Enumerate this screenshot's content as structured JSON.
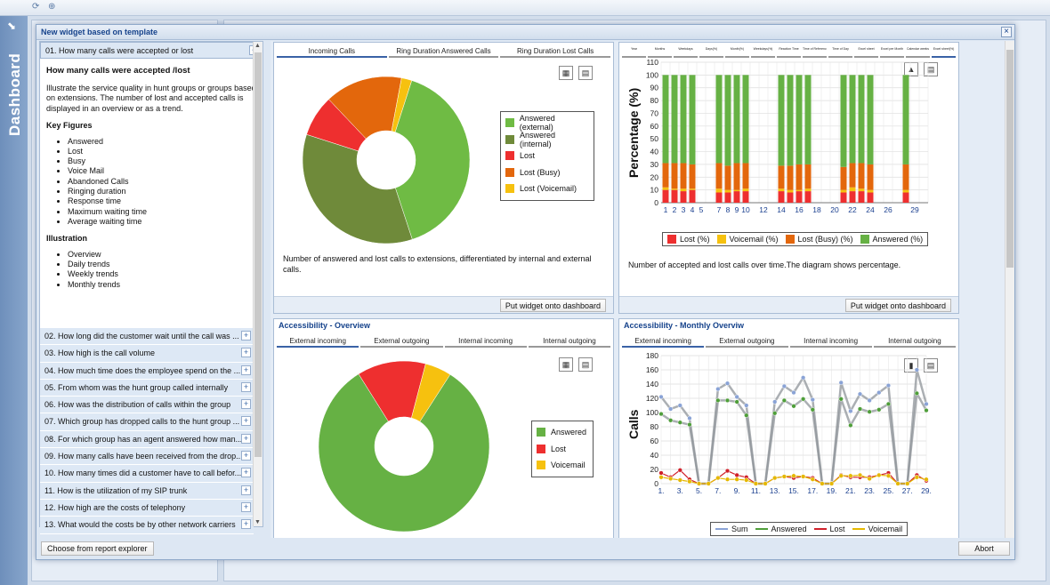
{
  "app": {
    "sidebar_title": "Dashboard"
  },
  "dialog": {
    "title": "New widget based on template"
  },
  "left": {
    "active_item": "01. How many calls were accepted or lost",
    "desc_title": "How many calls were accepted /lost",
    "desc_text": "Illustrate the service quality in hunt groups or groups based on extensions. The number of lost and accepted calls is displayed in an overview or as a trend.",
    "key_figures_title": "Key Figures",
    "key_figures": [
      "Answered",
      "Lost",
      "Busy",
      "Voice Mail",
      "Abandoned Calls",
      "Ringing duration",
      "Response time",
      "Maximum waiting time",
      "Average waiting time"
    ],
    "illustration_title": "Illustration",
    "illustration": [
      "Overview",
      "Daily trends",
      "Weekly trends",
      "Monthly trends"
    ],
    "items": [
      "02. How long did the customer wait until the call was ...",
      "03. How high is the call volume",
      "04. How much time does the employee spend on the ...",
      "05. From whom was the hunt group called internally",
      "06. How was the distribution of calls within the group",
      "07. Which group has dropped calls to the hunt group ...",
      "08. For which group has an agent answered how man...",
      "09. How many calls have been received from the drop...",
      "10. How many times did a customer have to call befor...",
      "11. How is the utilization of my SIP trunk",
      "12. How high are the costs of telephony",
      "13. What would the costs be by other network carriers"
    ]
  },
  "buttons": {
    "report_explorer": "Choose from report explorer",
    "abort": "Abort",
    "put_widget": "Put widget onto dashboard"
  },
  "colors": {
    "ans_ext": "#6fbb44",
    "ans_int": "#6f8a3a",
    "lost": "#ee2f2f",
    "busy": "#e3670c",
    "voicemail": "#f6c10f",
    "answered": "#66b144"
  },
  "w1": {
    "tabs": [
      "Incoming Calls",
      "Ring Duration Answered Calls",
      "Ring Duration Lost Calls"
    ],
    "legend": [
      "Answered (external)",
      "Answered (internal)",
      "Lost",
      "Lost (Busy)",
      "Lost (Voicemail)"
    ],
    "caption": "Number of answered and lost calls to extensions, differentiated by internal and external calls."
  },
  "w2": {
    "tabs": [
      "Year",
      "Months",
      "Weekdays",
      "Days(%)",
      "Month(%)",
      "Weekdays(%)",
      "Reaction Time",
      "Time of Reference",
      "Time of Day",
      "Excel sheet",
      "Excel per Month",
      "Calendar weeks",
      "Excel sheet(%)"
    ],
    "ylabel": "Percentage (%)",
    "legend": [
      "Lost (%)",
      "Voicemail (%)",
      "Lost (Busy) (%)",
      "Answered (%)"
    ],
    "caption": "Number of accepted and lost calls over time.The diagram shows percentage."
  },
  "w3": {
    "title": "Accessibility - Overview",
    "tabs": [
      "External incoming",
      "External outgoing",
      "Internal incoming",
      "Internal outgoing"
    ],
    "legend": [
      "Answered",
      "Lost",
      "Voicemail"
    ]
  },
  "w4": {
    "title": "Accessibility - Monthly Overviw",
    "tabs": [
      "External incoming",
      "External outgoing",
      "Internal incoming",
      "Internal outgoing"
    ],
    "ylabel": "Calls",
    "legend": [
      "Sum",
      "Answered",
      "Lost",
      "Voicemail"
    ]
  },
  "chart_data": [
    {
      "type": "pie",
      "categories": [
        "Answered (external)",
        "Answered (internal)",
        "Lost",
        "Lost (Busy)",
        "Lost (Voicemail)"
      ],
      "values": [
        40,
        35,
        8,
        15,
        2
      ]
    },
    {
      "type": "bar",
      "ylabel": "Percentage (%)",
      "ylim": [
        0,
        110
      ],
      "x": [
        1,
        2,
        3,
        4,
        5,
        6,
        7,
        8,
        9,
        10,
        11,
        12,
        13,
        14,
        15,
        16,
        17,
        18,
        19,
        20,
        21,
        22,
        23,
        24,
        25,
        26,
        27,
        28,
        29,
        30
      ],
      "xticks": [
        "1",
        "2",
        "3",
        "4",
        "5",
        "7",
        "8",
        "9",
        "10",
        "12",
        "14",
        "16",
        "18",
        "20",
        "22",
        "24",
        "26",
        "29"
      ],
      "series": [
        {
          "name": "Lost (%)",
          "values": [
            10,
            10,
            9,
            10,
            0,
            0,
            8,
            8,
            9,
            9,
            0,
            0,
            0,
            9,
            8,
            9,
            9,
            0,
            0,
            0,
            8,
            9,
            9,
            8,
            0,
            0,
            0,
            8,
            0,
            0
          ]
        },
        {
          "name": "Voicemail (%)",
          "values": [
            2,
            1,
            2,
            1,
            0,
            0,
            3,
            2,
            1,
            2,
            0,
            0,
            0,
            2,
            2,
            1,
            2,
            0,
            0,
            0,
            2,
            3,
            2,
            2,
            0,
            0,
            0,
            2,
            0,
            0
          ]
        },
        {
          "name": "Lost (Busy) (%)",
          "values": [
            19,
            20,
            20,
            19,
            0,
            0,
            20,
            19,
            21,
            20,
            0,
            0,
            0,
            18,
            19,
            20,
            19,
            0,
            0,
            0,
            18,
            19,
            20,
            20,
            0,
            0,
            0,
            20,
            0,
            0
          ]
        },
        {
          "name": "Answered (%)",
          "values": [
            69,
            69,
            69,
            70,
            0,
            0,
            69,
            71,
            69,
            69,
            0,
            0,
            0,
            71,
            71,
            70,
            70,
            0,
            0,
            0,
            72,
            69,
            69,
            70,
            0,
            0,
            0,
            70,
            0,
            0
          ]
        }
      ]
    },
    {
      "type": "pie",
      "categories": [
        "Answered",
        "Lost",
        "Voicemail"
      ],
      "values": [
        82,
        13,
        5
      ]
    },
    {
      "type": "line",
      "ylabel": "Calls",
      "ylim": [
        0,
        180
      ],
      "x": [
        1,
        2,
        3,
        4,
        5,
        6,
        7,
        8,
        9,
        10,
        11,
        12,
        13,
        14,
        15,
        16,
        17,
        18,
        19,
        20,
        21,
        22,
        23,
        24,
        25,
        26,
        27,
        28,
        29
      ],
      "xticks": [
        "1.",
        "3.",
        "5.",
        "7.",
        "9.",
        "11.",
        "13.",
        "15.",
        "17.",
        "19.",
        "21.",
        "23.",
        "25.",
        "27.",
        "29."
      ],
      "series": [
        {
          "name": "Sum",
          "values": [
            122,
            105,
            110,
            92,
            0,
            0,
            133,
            141,
            122,
            110,
            0,
            0,
            115,
            137,
            128,
            149,
            118,
            0,
            0,
            142,
            102,
            126,
            117,
            128,
            138,
            0,
            0,
            160,
            112
          ]
        },
        {
          "name": "Answered",
          "values": [
            98,
            89,
            86,
            83,
            0,
            0,
            117,
            117,
            115,
            96,
            0,
            0,
            99,
            117,
            109,
            119,
            104,
            0,
            0,
            119,
            82,
            105,
            101,
            104,
            112,
            0,
            0,
            127,
            103
          ]
        },
        {
          "name": "Lost",
          "values": [
            15,
            9,
            19,
            6,
            0,
            0,
            8,
            18,
            12,
            9,
            0,
            0,
            8,
            10,
            8,
            10,
            8,
            0,
            0,
            12,
            9,
            9,
            9,
            12,
            15,
            0,
            0,
            12,
            4
          ]
        },
        {
          "name": "Voicemail",
          "values": [
            9,
            7,
            5,
            3,
            0,
            0,
            8,
            6,
            6,
            5,
            0,
            0,
            8,
            10,
            11,
            10,
            6,
            0,
            0,
            11,
            11,
            12,
            7,
            12,
            11,
            0,
            0,
            9,
            6
          ]
        }
      ]
    }
  ]
}
